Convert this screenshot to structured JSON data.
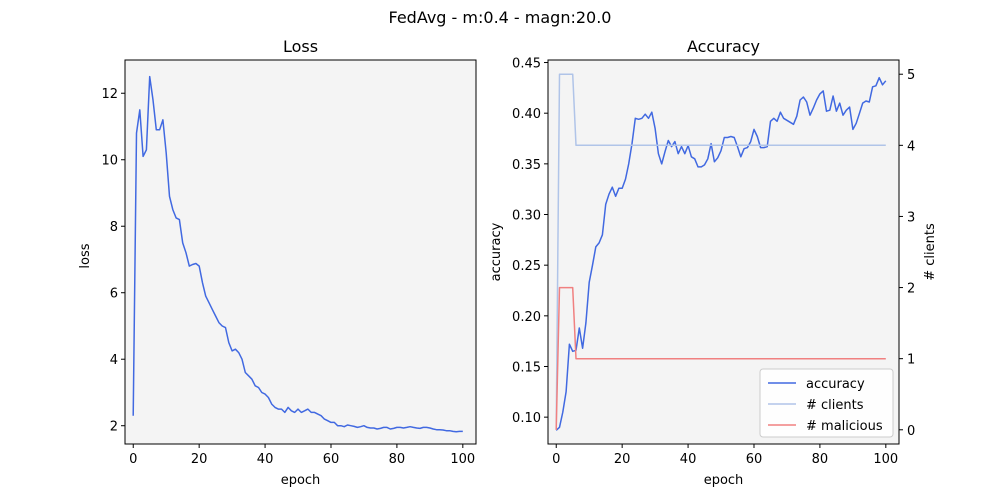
{
  "suptitle": "FedAvg - m:0.4 - magn:20.0",
  "colors": {
    "loss": "#4169e1",
    "accuracy": "#4169e1",
    "clients": "#b0c4e8",
    "malicious": "#f08080",
    "panel_bg": "#f4f4f4"
  },
  "chart_data": [
    {
      "type": "line",
      "title": "Loss",
      "xlabel": "epoch",
      "ylabel": "loss",
      "xlim": [
        -2.5,
        104
      ],
      "ylim": [
        1.45,
        13.0
      ],
      "xticks": [
        0,
        20,
        40,
        60,
        80,
        100
      ],
      "yticks": [
        2,
        4,
        6,
        8,
        10,
        12
      ],
      "grid": false,
      "series": [
        {
          "x": [
            0,
            1,
            2,
            3,
            4,
            5,
            6,
            7,
            8,
            9,
            10,
            11,
            12,
            13,
            14,
            15,
            16,
            17,
            18,
            19,
            20,
            21,
            22,
            23,
            24,
            25,
            26,
            27,
            28,
            29,
            30,
            31,
            32,
            33,
            34,
            35,
            36,
            37,
            38,
            39,
            40,
            41,
            42,
            43,
            44,
            45,
            46,
            47,
            48,
            49,
            50,
            51,
            52,
            53,
            54,
            55,
            56,
            57,
            58,
            59,
            60,
            61,
            62,
            63,
            64,
            65,
            66,
            67,
            68,
            69,
            70,
            71,
            72,
            73,
            74,
            75,
            76,
            77,
            78,
            79,
            80,
            81,
            82,
            83,
            84,
            85,
            86,
            87,
            88,
            89,
            90,
            91,
            92,
            93,
            94,
            95,
            96,
            97,
            98,
            99,
            100
          ],
          "values": [
            2.3,
            10.8,
            11.5,
            10.1,
            10.3,
            12.5,
            11.8,
            10.9,
            10.9,
            11.2,
            10.2,
            8.9,
            8.5,
            8.25,
            8.2,
            7.5,
            7.2,
            6.8,
            6.85,
            6.88,
            6.8,
            6.3,
            5.9,
            5.7,
            5.5,
            5.3,
            5.1,
            5.0,
            4.95,
            4.5,
            4.25,
            4.3,
            4.2,
            4.0,
            3.6,
            3.5,
            3.4,
            3.2,
            3.15,
            3.0,
            2.95,
            2.85,
            2.65,
            2.55,
            2.5,
            2.5,
            2.4,
            2.55,
            2.45,
            2.4,
            2.5,
            2.4,
            2.45,
            2.5,
            2.4,
            2.4,
            2.35,
            2.3,
            2.2,
            2.15,
            2.1,
            2.1,
            2.0,
            2.0,
            1.97,
            2.02,
            2.0,
            1.98,
            1.95,
            1.97,
            2.0,
            1.95,
            1.93,
            1.93,
            1.9,
            1.92,
            1.95,
            1.95,
            1.9,
            1.92,
            1.95,
            1.95,
            1.93,
            1.95,
            1.97,
            1.95,
            1.93,
            1.92,
            1.95,
            1.95,
            1.93,
            1.9,
            1.88,
            1.88,
            1.87,
            1.85,
            1.85,
            1.83,
            1.82,
            1.83,
            1.83
          ]
        }
      ]
    },
    {
      "type": "line",
      "title": "Accuracy",
      "xlabel": "epoch",
      "ylabel": "accuracy",
      "y2label": "# clients",
      "xlim": [
        -2.5,
        104
      ],
      "ylim": [
        0.0735,
        0.4525
      ],
      "y2lim": [
        -0.2,
        5.2
      ],
      "xticks": [
        0,
        20,
        40,
        60,
        80,
        100
      ],
      "yticks": [
        0.1,
        0.15,
        0.2,
        0.25,
        0.3,
        0.35,
        0.4,
        0.45
      ],
      "ytick_labels": [
        "0.10",
        "0.15",
        "0.20",
        "0.25",
        "0.30",
        "0.35",
        "0.40",
        "0.45"
      ],
      "y2ticks": [
        0,
        1,
        2,
        3,
        4,
        5
      ],
      "legend": "bottom-right",
      "grid": false,
      "series": [
        {
          "name": "accuracy",
          "axis": "left",
          "x": [
            0,
            1,
            2,
            3,
            4,
            5,
            6,
            7,
            8,
            9,
            10,
            11,
            12,
            13,
            14,
            15,
            16,
            17,
            18,
            19,
            20,
            21,
            22,
            23,
            24,
            25,
            26,
            27,
            28,
            29,
            30,
            31,
            32,
            33,
            34,
            35,
            36,
            37,
            38,
            39,
            40,
            41,
            42,
            43,
            44,
            45,
            46,
            47,
            48,
            49,
            50,
            51,
            52,
            53,
            54,
            55,
            56,
            57,
            58,
            59,
            60,
            61,
            62,
            63,
            64,
            65,
            66,
            67,
            68,
            69,
            70,
            71,
            72,
            73,
            74,
            75,
            76,
            77,
            78,
            79,
            80,
            81,
            82,
            83,
            84,
            85,
            86,
            87,
            88,
            89,
            90,
            91,
            92,
            93,
            94,
            95,
            96,
            97,
            98,
            99,
            100
          ],
          "values": [
            0.087,
            0.09,
            0.105,
            0.125,
            0.172,
            0.165,
            0.166,
            0.188,
            0.168,
            0.193,
            0.233,
            0.25,
            0.268,
            0.272,
            0.28,
            0.31,
            0.32,
            0.327,
            0.318,
            0.326,
            0.326,
            0.335,
            0.35,
            0.37,
            0.395,
            0.394,
            0.395,
            0.399,
            0.395,
            0.401,
            0.385,
            0.36,
            0.35,
            0.362,
            0.373,
            0.367,
            0.372,
            0.36,
            0.367,
            0.36,
            0.368,
            0.357,
            0.355,
            0.347,
            0.347,
            0.349,
            0.355,
            0.37,
            0.352,
            0.356,
            0.363,
            0.376,
            0.376,
            0.377,
            0.376,
            0.367,
            0.357,
            0.365,
            0.366,
            0.372,
            0.384,
            0.377,
            0.366,
            0.366,
            0.367,
            0.392,
            0.395,
            0.392,
            0.401,
            0.395,
            0.393,
            0.391,
            0.389,
            0.397,
            0.413,
            0.416,
            0.411,
            0.398,
            0.405,
            0.413,
            0.419,
            0.422,
            0.402,
            0.403,
            0.417,
            0.402,
            0.41,
            0.398,
            0.403,
            0.406,
            0.384,
            0.39,
            0.4,
            0.41,
            0.412,
            0.411,
            0.426,
            0.427,
            0.435,
            0.428,
            0.432
          ]
        },
        {
          "name": "# clients",
          "axis": "right",
          "x": [
            0,
            1,
            5,
            6,
            7,
            100
          ],
          "values": [
            0,
            5,
            5,
            4,
            4,
            4
          ]
        },
        {
          "name": "# malicious",
          "axis": "right",
          "x": [
            0,
            1,
            5,
            6,
            7,
            100
          ],
          "values": [
            0,
            2,
            2,
            1,
            1,
            1
          ]
        }
      ]
    }
  ]
}
